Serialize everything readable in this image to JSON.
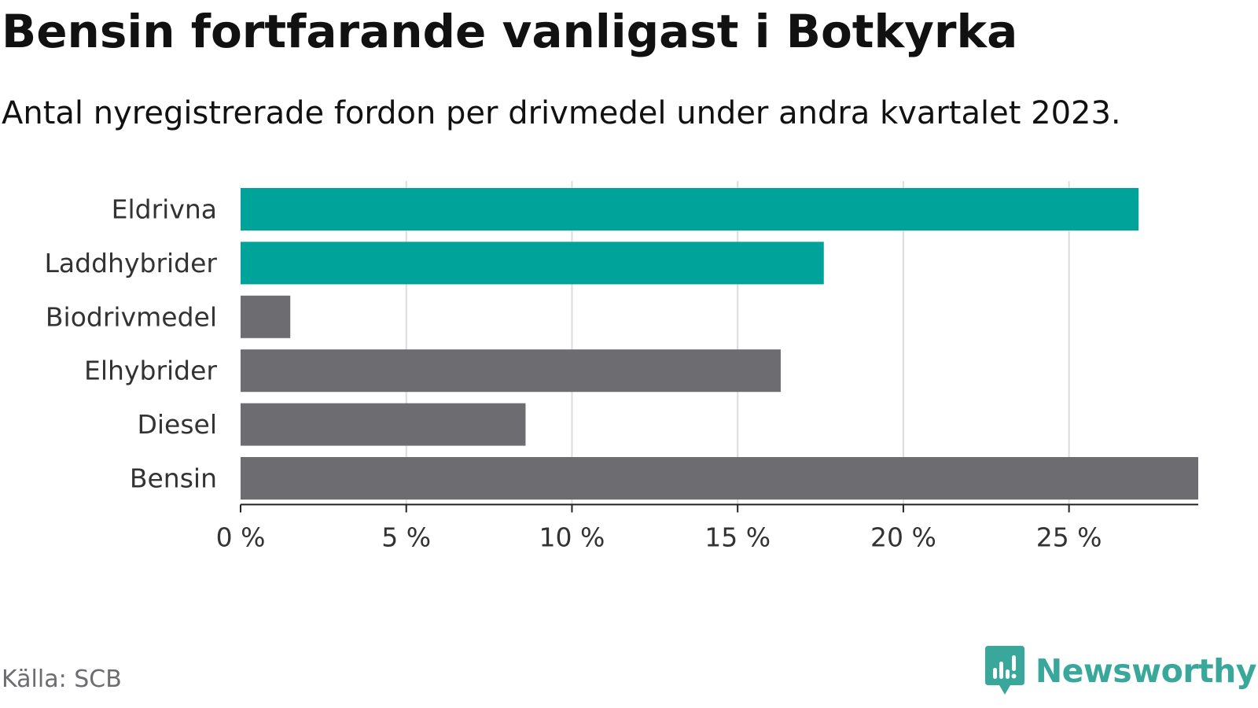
{
  "title": "Bensin fortfarande vanligast i Botkyrka",
  "subtitle": "Antal nyregistrerade fordon per drivmedel under andra kvartalet 2023.",
  "source": "Källa: SCB",
  "brand": {
    "name": "Newsworthy",
    "icon": "newsworthy-logo-icon",
    "color": "#3aa79b"
  },
  "colors": {
    "highlight": "#00a39a",
    "default": "#6d6c71",
    "grid": "#dcdcdc",
    "axis": "#222222"
  },
  "chart_data": {
    "type": "bar",
    "orientation": "horizontal",
    "categories": [
      "Eldrivna",
      "Laddhybrider",
      "Biodrivmedel",
      "Elhybrider",
      "Diesel",
      "Bensin"
    ],
    "values": [
      27.1,
      17.6,
      1.5,
      16.3,
      8.6,
      28.9
    ],
    "highlighted": [
      "Eldrivna",
      "Laddhybrider"
    ],
    "xlim": [
      0,
      28.9
    ],
    "xticks": [
      0,
      5,
      10,
      15,
      20,
      25
    ],
    "xtick_labels": [
      "0 %",
      "5 %",
      "10 %",
      "15 %",
      "20 %",
      "25 %"
    ],
    "xlabel": "",
    "ylabel": "",
    "grid": "vertical",
    "legend": "none"
  }
}
